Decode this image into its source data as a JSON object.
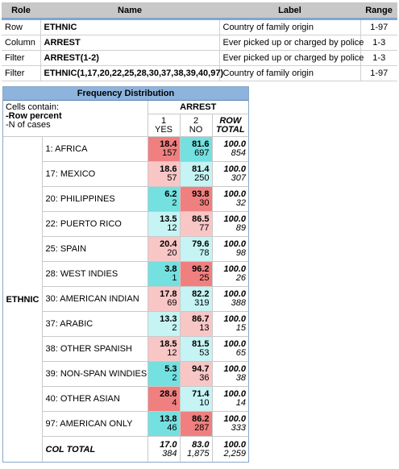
{
  "variables": {
    "headers": [
      "Role",
      "Name",
      "Label",
      "Range"
    ],
    "rows": [
      {
        "role": "Row",
        "name": "ETHNIC",
        "label": "Country of family origin",
        "range": "1-97"
      },
      {
        "role": "Column",
        "name": "ARREST",
        "label": "Ever picked up or charged by police",
        "range": "1-3"
      },
      {
        "role": "Filter",
        "name": "ARREST(1-2)",
        "label": "Ever picked up or charged by police",
        "range": "1-3"
      },
      {
        "role": "Filter",
        "name": "ETHNIC(1,17,20,22,25,28,30,37,38,39,40,97)",
        "label": "Country of family origin",
        "range": "1-97"
      }
    ]
  },
  "freq": {
    "title": "Frequency Distribution",
    "cells_contain": "Cells contain:",
    "row_percent": "-Row percent",
    "n_cases": "-N of cases",
    "col_var": "ARREST",
    "row_var": "ETHNIC",
    "cols": [
      {
        "code": "1",
        "label": "YES"
      },
      {
        "code": "2",
        "label": "NO"
      }
    ],
    "total_label_1": "ROW",
    "total_label_2": "TOTAL",
    "colors": {
      "red_strong": "#f08080",
      "red_light": "#f9c6c6",
      "cyan_strong": "#74e0e0",
      "cyan_light": "#c6f3f3"
    },
    "rows": [
      {
        "label": "1: AFRICA",
        "yes_pct": "18.4",
        "yes_n": "157",
        "no_pct": "81.6",
        "no_n": "697",
        "tot_pct": "100.0",
        "tot_n": "854",
        "yes_bg": "red_strong",
        "no_bg": "cyan_strong"
      },
      {
        "label": "17: MEXICO",
        "yes_pct": "18.6",
        "yes_n": "57",
        "no_pct": "81.4",
        "no_n": "250",
        "tot_pct": "100.0",
        "tot_n": "307",
        "yes_bg": "red_light",
        "no_bg": "cyan_light"
      },
      {
        "label": "20: PHILIPPINES",
        "yes_pct": "6.2",
        "yes_n": "2",
        "no_pct": "93.8",
        "no_n": "30",
        "tot_pct": "100.0",
        "tot_n": "32",
        "yes_bg": "cyan_strong",
        "no_bg": "red_strong"
      },
      {
        "label": "22: PUERTO RICO",
        "yes_pct": "13.5",
        "yes_n": "12",
        "no_pct": "86.5",
        "no_n": "77",
        "tot_pct": "100.0",
        "tot_n": "89",
        "yes_bg": "cyan_light",
        "no_bg": "red_light"
      },
      {
        "label": "25: SPAIN",
        "yes_pct": "20.4",
        "yes_n": "20",
        "no_pct": "79.6",
        "no_n": "78",
        "tot_pct": "100.0",
        "tot_n": "98",
        "yes_bg": "red_light",
        "no_bg": "cyan_light"
      },
      {
        "label": "28: WEST INDIES",
        "yes_pct": "3.8",
        "yes_n": "1",
        "no_pct": "96.2",
        "no_n": "25",
        "tot_pct": "100.0",
        "tot_n": "26",
        "yes_bg": "cyan_strong",
        "no_bg": "red_strong"
      },
      {
        "label": "30: AMERICAN INDIAN",
        "yes_pct": "17.8",
        "yes_n": "69",
        "no_pct": "82.2",
        "no_n": "319",
        "tot_pct": "100.0",
        "tot_n": "388",
        "yes_bg": "red_light",
        "no_bg": "cyan_light"
      },
      {
        "label": "37: ARABIC",
        "yes_pct": "13.3",
        "yes_n": "2",
        "no_pct": "86.7",
        "no_n": "13",
        "tot_pct": "100.0",
        "tot_n": "15",
        "yes_bg": "cyan_light",
        "no_bg": "red_light"
      },
      {
        "label": "38: OTHER SPANISH",
        "yes_pct": "18.5",
        "yes_n": "12",
        "no_pct": "81.5",
        "no_n": "53",
        "tot_pct": "100.0",
        "tot_n": "65",
        "yes_bg": "red_light",
        "no_bg": "cyan_light"
      },
      {
        "label": "39: NON-SPAN WINDIES",
        "yes_pct": "5.3",
        "yes_n": "2",
        "no_pct": "94.7",
        "no_n": "36",
        "tot_pct": "100.0",
        "tot_n": "38",
        "yes_bg": "cyan_strong",
        "no_bg": "red_light"
      },
      {
        "label": "40: OTHER ASIAN",
        "yes_pct": "28.6",
        "yes_n": "4",
        "no_pct": "71.4",
        "no_n": "10",
        "tot_pct": "100.0",
        "tot_n": "14",
        "yes_bg": "red_strong",
        "no_bg": "cyan_light"
      },
      {
        "label": "97: AMERICAN ONLY",
        "yes_pct": "13.8",
        "yes_n": "46",
        "no_pct": "86.2",
        "no_n": "287",
        "tot_pct": "100.0",
        "tot_n": "333",
        "yes_bg": "cyan_strong",
        "no_bg": "red_strong"
      }
    ],
    "col_total": {
      "label": "COL TOTAL",
      "yes_pct": "17.0",
      "yes_n": "384",
      "no_pct": "83.0",
      "no_n": "1,875",
      "tot_pct": "100.0",
      "tot_n": "2,259"
    }
  }
}
